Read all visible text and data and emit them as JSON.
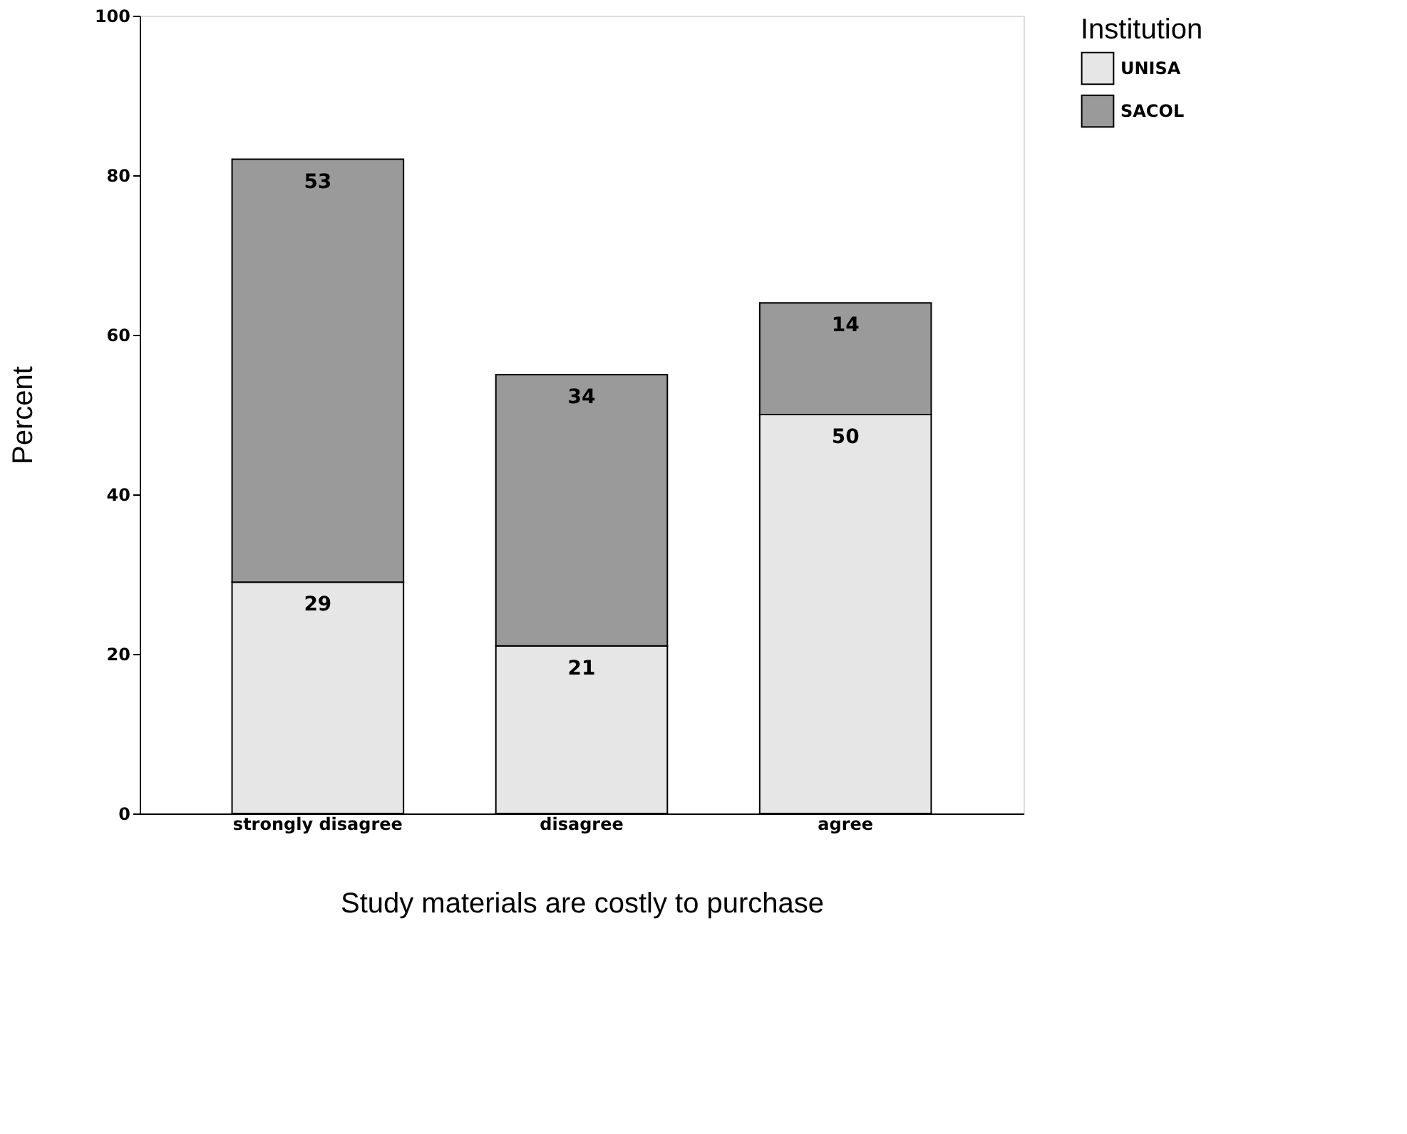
{
  "chart_data": {
    "type": "bar",
    "stacked": true,
    "xlabel": "Study materials are costly to purchase",
    "ylabel": "Percent",
    "legend_title": "Institution",
    "categories": [
      "strongly disagree",
      "disagree",
      "agree"
    ],
    "series": [
      {
        "name": "UNISA",
        "color": "#e6e6e6",
        "values": [
          29,
          21,
          50
        ]
      },
      {
        "name": "SACOL",
        "color": "#9a9a9a",
        "values": [
          53,
          34,
          14
        ]
      }
    ],
    "ylim": [
      0,
      100
    ],
    "yticks": [
      0,
      20,
      40,
      60,
      80,
      100
    ],
    "grid": false,
    "legend": "right",
    "data_labels": true
  }
}
